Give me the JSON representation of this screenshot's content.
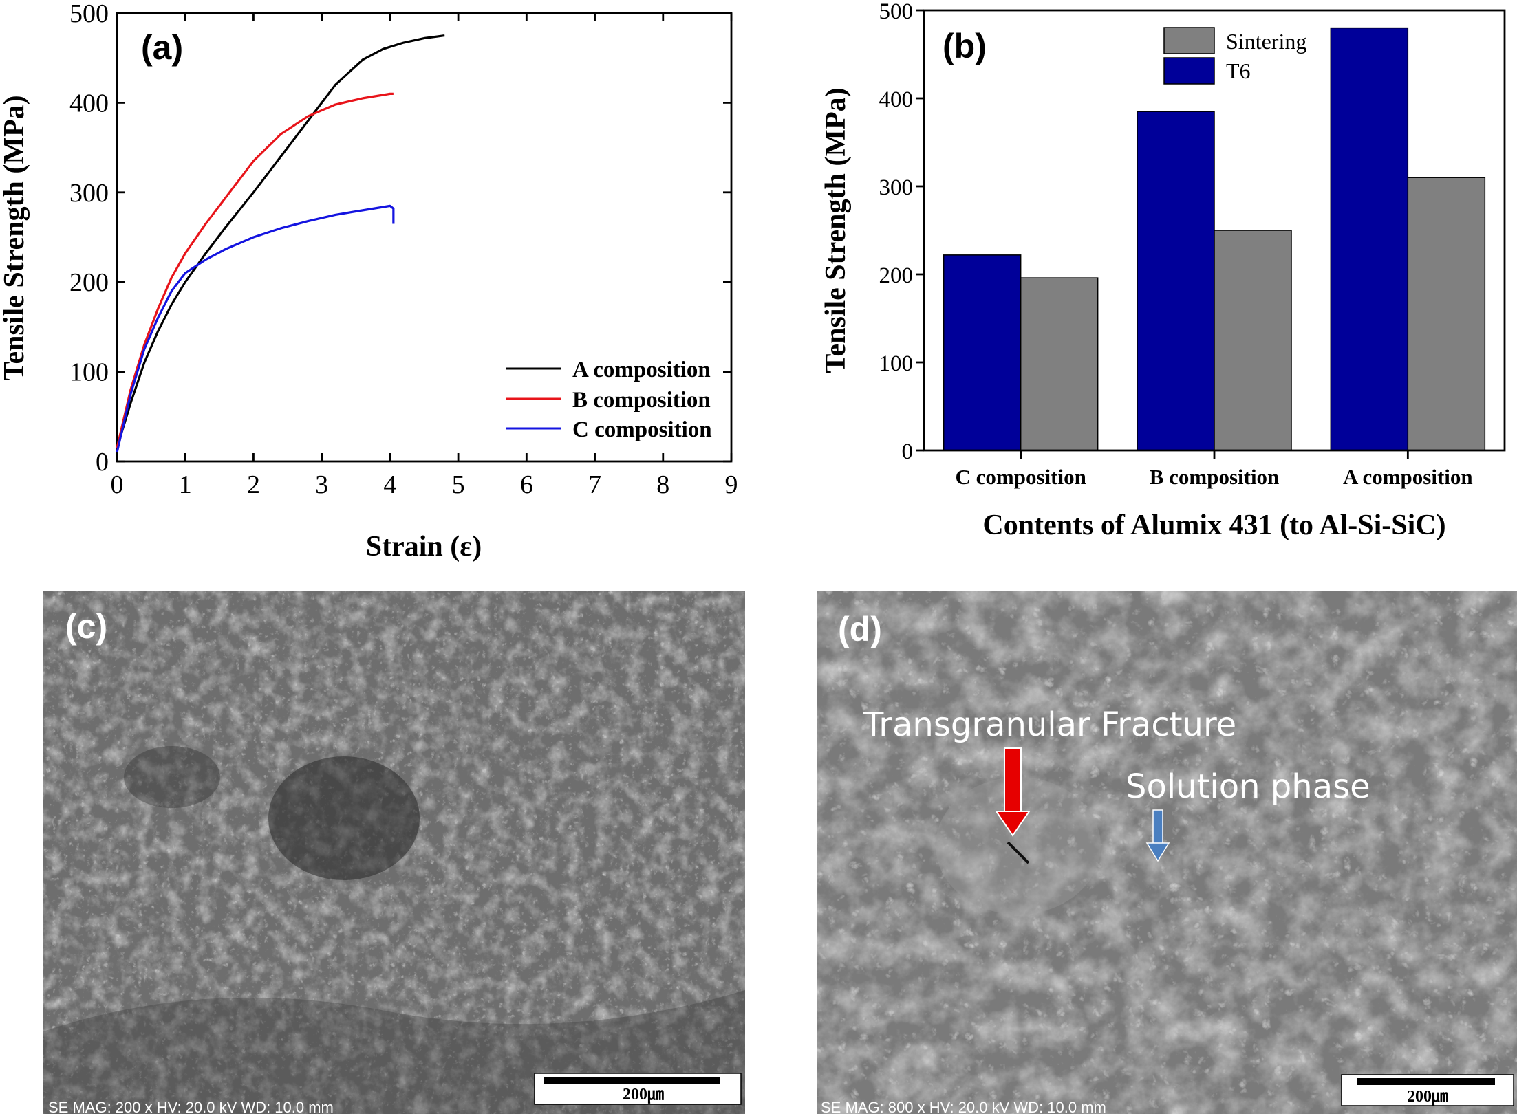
{
  "chart_data": [
    {
      "type": "line",
      "panel": "(a)",
      "xlabel": "Strain (ε)",
      "ylabel": "Tensile Strength (MPa)",
      "xlim": [
        0,
        9
      ],
      "ylim": [
        0,
        500
      ],
      "xticks": [
        "0",
        "1",
        "2",
        "3",
        "4",
        "5",
        "6",
        "7",
        "8",
        "9"
      ],
      "yticks": [
        "0",
        "100",
        "200",
        "300",
        "400",
        "500"
      ],
      "legend_position": "bottom-right",
      "series": [
        {
          "name": "A composition",
          "color": "#000000",
          "x": [
            0,
            0.2,
            0.4,
            0.6,
            0.8,
            1.0,
            1.3,
            1.6,
            2.0,
            2.4,
            2.8,
            3.2,
            3.6,
            3.9,
            4.2,
            4.5,
            4.8
          ],
          "y": [
            15,
            65,
            110,
            145,
            175,
            200,
            232,
            262,
            300,
            340,
            380,
            420,
            448,
            460,
            467,
            472,
            475
          ]
        },
        {
          "name": "B composition",
          "color": "#e8141a",
          "x": [
            0,
            0.2,
            0.4,
            0.6,
            0.8,
            1.0,
            1.3,
            1.6,
            2.0,
            2.4,
            2.8,
            3.2,
            3.6,
            4.0,
            4.05
          ],
          "y": [
            15,
            80,
            130,
            170,
            205,
            232,
            265,
            295,
            335,
            365,
            385,
            398,
            405,
            410,
            410
          ]
        },
        {
          "name": "C composition",
          "color": "#1414e0",
          "x": [
            0,
            0.2,
            0.4,
            0.6,
            0.8,
            1.0,
            1.3,
            1.6,
            2.0,
            2.4,
            2.8,
            3.2,
            3.6,
            4.0,
            4.05,
            4.05
          ],
          "y": [
            10,
            75,
            125,
            160,
            190,
            210,
            225,
            237,
            250,
            260,
            268,
            275,
            280,
            285,
            282,
            265
          ]
        }
      ]
    },
    {
      "type": "bar",
      "panel": "(b)",
      "xlabel": "Contents of Alumix 431 (to Al-Si-SiC)",
      "ylabel": "Tensile Strength (MPa)",
      "ylim": [
        0,
        500
      ],
      "yticks": [
        "0",
        "100",
        "200",
        "300",
        "400",
        "500"
      ],
      "categories": [
        "C composition",
        "B composition",
        "A composition"
      ],
      "legend_position": "top-center",
      "series": [
        {
          "name": "T6",
          "color": "#000099",
          "values": [
            222,
            385,
            480
          ]
        },
        {
          "name": "Sintering",
          "color": "#808080",
          "values": [
            196,
            250,
            310
          ]
        }
      ]
    }
  ],
  "micrographs": {
    "c": {
      "label": "(c)",
      "info": "SE  MAG: 200 x  HV: 20.0 kV  WD: 10.0 mm",
      "scale": "200㎛"
    },
    "d": {
      "label": "(d)",
      "info": "SE  MAG: 800 x  HV: 20.0 kV  WD: 10.0 mm",
      "scale": "200㎛",
      "annotation1": "Transgranular Fracture",
      "annotation2": "Solution phase"
    }
  }
}
